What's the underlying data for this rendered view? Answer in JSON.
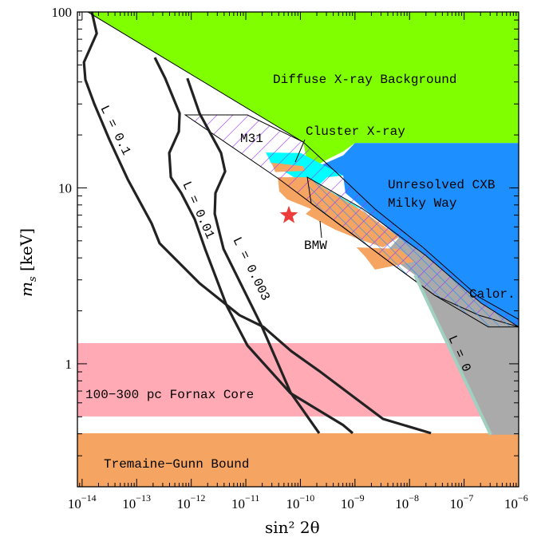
{
  "chart_data": {
    "type": "area",
    "xlabel": "sin² 2θ",
    "ylabel_main": "m",
    "ylabel_sub": "s",
    "ylabel_unit": " [keV]",
    "xscale": "log",
    "yscale": "log",
    "xlim": [
      8.2e-15,
      1e-06
    ],
    "ylim": [
      0.2,
      100
    ],
    "grid": false,
    "x_ticks": [
      {
        "base": "10",
        "exp": "−14",
        "value": 1e-14
      },
      {
        "base": "10",
        "exp": "−13",
        "value": 1e-13
      },
      {
        "base": "10",
        "exp": "−12",
        "value": 1e-12
      },
      {
        "base": "10",
        "exp": "−11",
        "value": 1e-11
      },
      {
        "base": "10",
        "exp": "−10",
        "value": 1e-10
      },
      {
        "base": "10",
        "exp": "−9",
        "value": 1e-09
      },
      {
        "base": "10",
        "exp": "−8",
        "value": 1e-08
      },
      {
        "base": "10",
        "exp": "−7",
        "value": 1e-07
      },
      {
        "base": "10",
        "exp": "−6",
        "value": 1e-06
      }
    ],
    "y_ticks": [
      {
        "label": "1",
        "value": 1
      },
      {
        "label": "10",
        "value": 10
      },
      {
        "label": "100",
        "value": 100
      }
    ],
    "bands": [
      {
        "name": "100−300 pc Fornax Core",
        "ymin": 0.502,
        "ymax": 1.31,
        "color": "#ffaab5"
      },
      {
        "name": "Tremaine−Gunn Bound",
        "ymin": 0.2,
        "ymax": 0.403,
        "color": "#f5a462"
      }
    ],
    "regions": [
      {
        "name": "Diffuse X-ray Background",
        "color": "#80ff00",
        "points": [
          [
            1.27e-14,
            100
          ],
          [
            1e-06,
            100
          ],
          [
            1e-06,
            18.0
          ],
          [
            1e-09,
            18.0
          ],
          [
            6.08e-10,
            16.1
          ],
          [
            3.1e-10,
            14.5
          ],
          [
            1.87e-10,
            13.3
          ],
          [
            1.34e-10,
            13.7
          ],
          [
            1.13e-10,
            18.2
          ]
        ]
      },
      {
        "name": "Unresolved CXB Milky Way",
        "color": "#1e8fff",
        "points": [
          [
            1e-09,
            18.0
          ],
          [
            1e-06,
            18.0
          ],
          [
            1e-06,
            1.62
          ],
          [
            2.06e-07,
            2.21
          ],
          [
            1.95e-08,
            4.14
          ],
          [
            6.4e-09,
            5.21
          ],
          [
            1.5e-09,
            7.58
          ],
          [
            6.7e-10,
            9.35
          ],
          [
            6.08e-10,
            11.75
          ],
          [
            1.87e-10,
            13.0
          ],
          [
            6.08e-10,
            15.3
          ]
        ]
      },
      {
        "name": "Calor.",
        "color": "#aaaaaa",
        "points": [
          [
            3.87e-09,
            4.36
          ],
          [
            6.4e-09,
            5.21
          ],
          [
            1.95e-08,
            4.14
          ],
          [
            2.06e-07,
            2.21
          ],
          [
            1e-06,
            1.62
          ],
          [
            1e-06,
            0.395
          ],
          [
            3.08e-07,
            0.395
          ],
          [
            1.26e-08,
            3.19
          ],
          [
            6.4e-09,
            3.73
          ]
        ]
      },
      {
        "name": "Cluster X-ray",
        "color": "#00ffff",
        "points": [
          [
            2.33e-11,
            15.9
          ],
          [
            1.02e-10,
            15.8
          ],
          [
            6.08e-10,
            11.75
          ],
          [
            3.1e-10,
            11.5
          ],
          [
            2.21e-10,
            10.4
          ],
          [
            1.32e-09,
            7.58
          ],
          [
            2.21e-10,
            9.06
          ],
          [
            6.8e-11,
            11.75
          ],
          [
            2.94e-11,
            13.7
          ]
        ]
      },
      {
        "name": "BMW",
        "color": "#f5a462",
        "points": [
          [
            2.94e-11,
            13.9
          ],
          [
            1.13e-10,
            13.3
          ],
          [
            1.2e-10,
            12.5
          ],
          [
            3.47e-11,
            12.3
          ]
        ]
      },
      {
        "name": "BMW",
        "color": "#f5a462",
        "points": [
          [
            3.85e-11,
            11.5
          ],
          [
            1.34e-10,
            11.5
          ],
          [
            2.21e-10,
            10.4
          ],
          [
            1.41e-09,
            7.35
          ],
          [
            6.4e-09,
            5.26
          ],
          [
            3.27e-09,
            4.59
          ],
          [
            1.19e-09,
            5.1
          ],
          [
            4.36e-10,
            5.78
          ],
          [
            2.62e-10,
            6.28
          ],
          [
            1.25e-10,
            7.12
          ],
          [
            1.58e-10,
            7.58
          ],
          [
            5.75e-11,
            8.6
          ],
          [
            4.11e-11,
            9.55
          ]
        ]
      },
      {
        "name": "BMW",
        "color": "#f5a462",
        "points": [
          [
            1.07e-09,
            4.59
          ],
          [
            6.4e-09,
            4.5
          ],
          [
            1.26e-08,
            3.81
          ],
          [
            2.33e-09,
            3.43
          ],
          [
            1.56e-09,
            4.05
          ]
        ]
      }
    ],
    "hatched_regions": [
      {
        "name": "M31",
        "color": "#9933ff",
        "points": [
          [
            7.74e-13,
            26.0
          ],
          [
            1.07e-11,
            26.0
          ],
          [
            1.13e-10,
            18.2
          ],
          [
            4.36e-10,
            12.4
          ],
          [
            2.33e-09,
            7.58
          ],
          [
            1.76e-08,
            4.59
          ],
          [
            1.86e-07,
            2.4
          ],
          [
            1e-06,
            1.79
          ],
          [
            1e-06,
            1.62
          ],
          [
            1.86e-07,
            1.89
          ],
          [
            2.9e-08,
            2.45
          ],
          [
            4.6e-09,
            3.73
          ],
          [
            6.08e-10,
            5.97
          ],
          [
            4.11e-11,
            11.2
          ]
        ]
      },
      {
        "name": "",
        "color": "#1e8fff",
        "points": [
          [
            1.34e-10,
            11.5
          ],
          [
            1.41e-09,
            7.58
          ],
          [
            1.95e-08,
            4.14
          ],
          [
            2.06e-07,
            2.21
          ],
          [
            1e-06,
            1.62
          ],
          [
            2.78e-07,
            1.62
          ],
          [
            2.9e-08,
            2.45
          ],
          [
            4.6e-09,
            3.73
          ],
          [
            6.08e-10,
            5.97
          ],
          [
            1.58e-10,
            8.16
          ]
        ]
      }
    ],
    "lines": [
      {
        "name": "L = 0",
        "color": "#9fd0c0",
        "points": [
          [
            1.26e-08,
            3.19
          ],
          [
            3.08e-07,
            0.395
          ]
        ]
      },
      {
        "name": "L = 0.1",
        "color": "#222222",
        "points": [
          [
            1.51e-14,
            100
          ],
          [
            1.85e-14,
            75.5
          ],
          [
            1.08e-14,
            51.8
          ],
          [
            1.15e-14,
            41.2
          ],
          [
            1.67e-14,
            30.1
          ],
          [
            3.16e-14,
            18.8
          ],
          [
            6.85e-14,
            11.2
          ],
          [
            1.88e-13,
            6.28
          ],
          [
            2.63e-13,
            4.84
          ],
          [
            1.42e-12,
            2.87
          ],
          [
            7.64e-12,
            1.89
          ],
          [
            2.1e-11,
            1.62
          ],
          [
            6.8e-11,
            1.18
          ],
          [
            2.21e-10,
            0.91
          ],
          [
            8.5e-10,
            0.665
          ],
          [
            3.27e-09,
            0.486
          ],
          [
            2.47e-08,
            0.403
          ]
        ]
      },
      {
        "name": "L = 0.01",
        "color": "#222222",
        "points": [
          [
            2.15e-13,
            55.1
          ],
          [
            3.33e-13,
            42.0
          ],
          [
            6.12e-13,
            26.5
          ],
          [
            5.92e-13,
            20.9
          ],
          [
            3.95e-13,
            15.8
          ],
          [
            4.23e-13,
            11.5
          ],
          [
            6.55e-13,
            9.35
          ],
          [
            1.16e-12,
            6.62
          ],
          [
            1.79e-12,
            4.5
          ],
          [
            4.46e-12,
            2.14
          ],
          [
            1.07e-11,
            1.27
          ],
          [
            6.6e-11,
            0.68
          ],
          [
            6.08e-10,
            0.448
          ],
          [
            9.1e-10,
            0.403
          ]
        ]
      },
      {
        "name": "L = 0.003",
        "color": "#222222",
        "points": [
          [
            8.5e-13,
            42.0
          ],
          [
            1.42e-12,
            26.5
          ],
          [
            3.52e-12,
            15.8
          ],
          [
            4.17e-12,
            12.4
          ],
          [
            2.78e-12,
            9.35
          ],
          [
            2.69e-12,
            7.12
          ],
          [
            3.9e-12,
            4.5
          ],
          [
            1.9e-11,
            1.67
          ],
          [
            6.6e-11,
            0.687
          ],
          [
            2.21e-10,
            0.403
          ]
        ]
      }
    ],
    "marker": {
      "shape": "star",
      "color": "#ee3b3b",
      "x": 6.15e-11,
      "y": 6.98
    },
    "annotations": {
      "diffuse": "Diffuse X-ray Background",
      "cluster": "Cluster X-ray",
      "m31": "M31",
      "cxb1": "Unresolved CXB",
      "cxb2": "Milky Way",
      "bmw": "BMW",
      "calor": "Calor.",
      "fornax": "100−300 pc Fornax Core",
      "tg": "Tremaine−Gunn Bound",
      "l0": "L = 0",
      "l01": "L = 0.1",
      "l001": "L = 0.01",
      "l0003": "L = 0.003"
    }
  }
}
